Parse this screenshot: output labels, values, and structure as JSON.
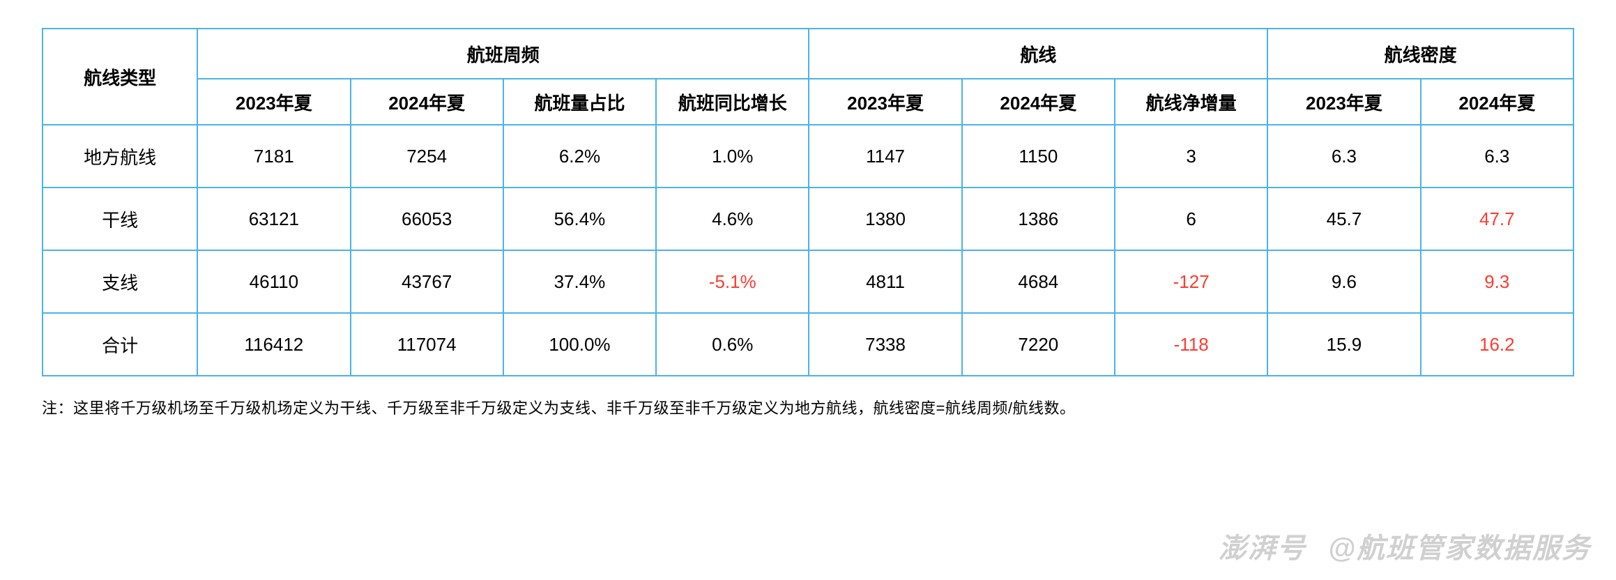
{
  "table": {
    "border_color": "#4bb3e8",
    "background_color": "#ffffff",
    "text_color": "#000000",
    "negative_color": "#ff3b30",
    "font_size": 26,
    "header_fontweight": 700,
    "type_header": "航线类型",
    "groups": [
      {
        "label": "航班周频",
        "span": 4
      },
      {
        "label": "航线",
        "span": 3
      },
      {
        "label": "航线密度",
        "span": 2
      }
    ],
    "columns": [
      "2023年夏",
      "2024年夏",
      "航班量占比",
      "航班同比增长",
      "2023年夏",
      "2024年夏",
      "航线净增量",
      "2023年夏",
      "2024年夏"
    ],
    "rows": [
      {
        "type": "地方航线",
        "cells": [
          {
            "v": "7181"
          },
          {
            "v": "7254"
          },
          {
            "v": "6.2%"
          },
          {
            "v": "1.0%"
          },
          {
            "v": "1147"
          },
          {
            "v": "1150"
          },
          {
            "v": "3"
          },
          {
            "v": "6.3"
          },
          {
            "v": "6.3"
          }
        ]
      },
      {
        "type": "干线",
        "cells": [
          {
            "v": "63121"
          },
          {
            "v": "66053"
          },
          {
            "v": "56.4%"
          },
          {
            "v": "4.6%"
          },
          {
            "v": "1380"
          },
          {
            "v": "1386"
          },
          {
            "v": "6"
          },
          {
            "v": "45.7"
          },
          {
            "v": "47.7",
            "neg": true
          }
        ]
      },
      {
        "type": "支线",
        "cells": [
          {
            "v": "46110"
          },
          {
            "v": "43767"
          },
          {
            "v": "37.4%"
          },
          {
            "v": "-5.1%",
            "neg": true
          },
          {
            "v": "4811"
          },
          {
            "v": "4684"
          },
          {
            "v": "-127",
            "neg": true
          },
          {
            "v": "9.6"
          },
          {
            "v": "9.3",
            "neg": true
          }
        ]
      },
      {
        "type": "合计",
        "cells": [
          {
            "v": "116412"
          },
          {
            "v": "117074"
          },
          {
            "v": "100.0%"
          },
          {
            "v": "0.6%"
          },
          {
            "v": "7338"
          },
          {
            "v": "7220"
          },
          {
            "v": "-118",
            "neg": true
          },
          {
            "v": "15.9"
          },
          {
            "v": "16.2",
            "neg": true
          }
        ]
      }
    ]
  },
  "note": "注：这里将千万级机场至千万级机场定义为干线、千万级至非千万级定义为支线、非千万级至非千万级定义为地方航线，航线密度=航线周频/航线数。",
  "watermark": {
    "a": "澎湃号",
    "b": "@航班管家数据服务"
  }
}
